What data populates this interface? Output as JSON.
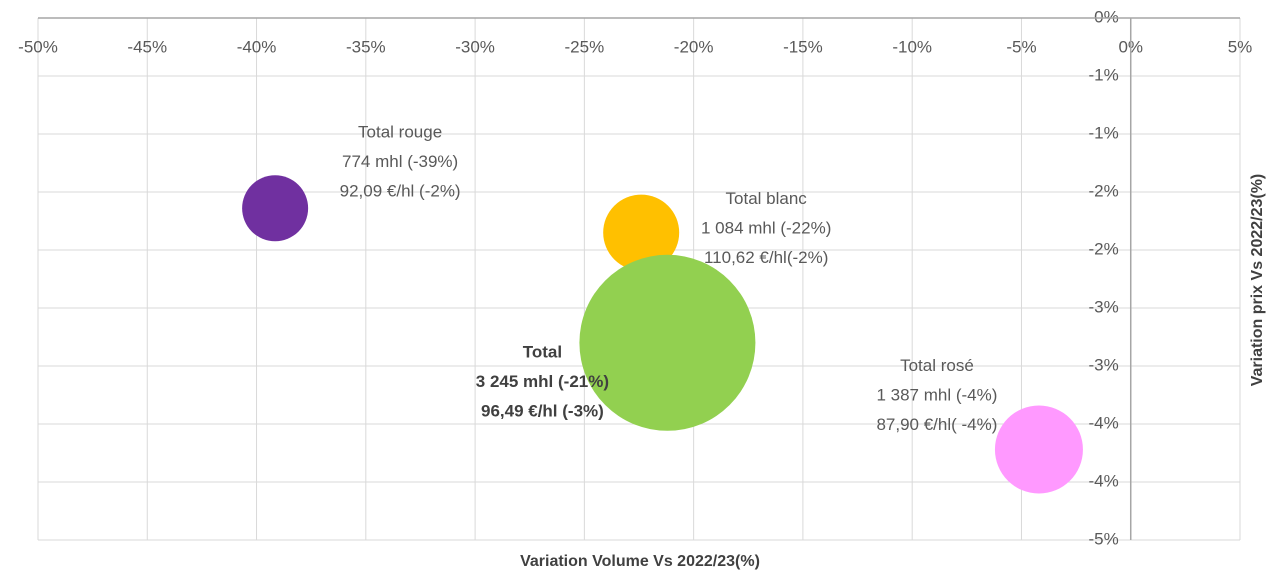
{
  "chart_data": {
    "type": "bubble",
    "x_label": "Variation Volume Vs 2022/23(%)",
    "y_label": "Variation prix Vs 2022/23(%)",
    "xlim": [
      -50,
      5
    ],
    "xticks": [
      {
        "value": -50,
        "label": "-50%"
      },
      {
        "value": -45,
        "label": "-45%"
      },
      {
        "value": -40,
        "label": "-40%"
      },
      {
        "value": -35,
        "label": "-35%"
      },
      {
        "value": -30,
        "label": "-30%"
      },
      {
        "value": -25,
        "label": "-25%"
      },
      {
        "value": -20,
        "label": "-20%"
      },
      {
        "value": -15,
        "label": "-15%"
      },
      {
        "value": -10,
        "label": "-10%"
      },
      {
        "value": -5,
        "label": "-5%"
      },
      {
        "value": 0,
        "label": "0%"
      },
      {
        "value": 5,
        "label": "5%"
      }
    ],
    "ylim": [
      -4.5,
      0
    ],
    "yticks": [
      {
        "value": 0,
        "label": "0%"
      },
      {
        "value": -0.5,
        "label": "-1%"
      },
      {
        "value": -1,
        "label": "-1%"
      },
      {
        "value": -1.5,
        "label": "-2%"
      },
      {
        "value": -2,
        "label": "-2%"
      },
      {
        "value": -2.5,
        "label": "-3%"
      },
      {
        "value": -3,
        "label": "-3%"
      },
      {
        "value": -3.5,
        "label": "-4%"
      },
      {
        "value": -4,
        "label": "-4%"
      },
      {
        "value": -4.5,
        "label": "-5%"
      }
    ],
    "grid": true,
    "series": [
      {
        "name": "Total rouge",
        "color": "#7030a0",
        "x": [
          -39.15
        ],
        "values": [
          -1.64
        ],
        "sizes": [
          1089
        ],
        "labels": [
          "774 mhl (-39%)",
          "92,09 €/hl (-2%)"
        ],
        "bold": false
      },
      {
        "name": "Total blanc",
        "color": "#ffc000",
        "x": [
          -22.4
        ],
        "values": [
          -1.85
        ],
        "sizes": [
          1444
        ],
        "labels": [
          "1 084 mhl (-22%)",
          "110,62 €/hl(-2%)"
        ],
        "bold": false
      },
      {
        "name": "Total",
        "color": "#92d050",
        "x": [
          -21.2
        ],
        "values": [
          -2.8
        ],
        "sizes": [
          7744
        ],
        "labels": [
          "3 245 mhl (-21%)",
          "96,49 €/hl (-3%)"
        ],
        "bold": true
      },
      {
        "name": "Total rosé",
        "color": "#ff99ff",
        "x": [
          -4.2
        ],
        "values": [
          -3.72
        ],
        "sizes": [
          1936
        ],
        "labels": [
          "1 387 mhl (-4%)",
          "87,90 €/hl( -4%)"
        ],
        "bold": false
      }
    ]
  }
}
